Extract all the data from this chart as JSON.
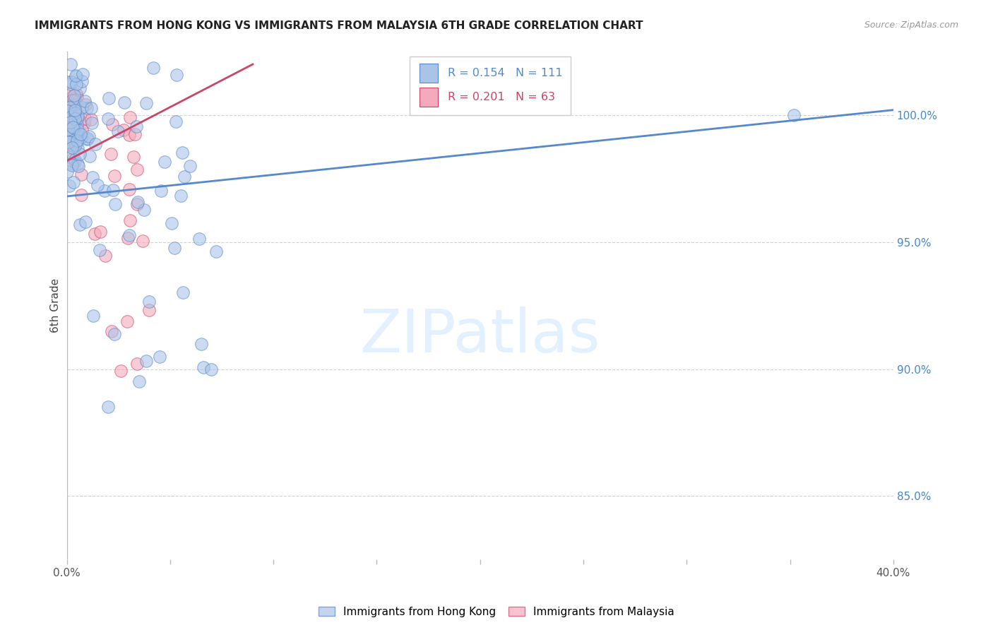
{
  "title": "IMMIGRANTS FROM HONG KONG VS IMMIGRANTS FROM MALAYSIA 6TH GRADE CORRELATION CHART",
  "source": "Source: ZipAtlas.com",
  "ylabel": "6th Grade",
  "yticks": [
    85.0,
    90.0,
    95.0,
    100.0
  ],
  "ytick_labels": [
    "85.0%",
    "90.0%",
    "95.0%",
    "100.0%"
  ],
  "xlim": [
    0.0,
    40.0
  ],
  "ylim": [
    82.5,
    102.5
  ],
  "hk_color": "#aac4e8",
  "hk_edge_color": "#5588cc",
  "my_color": "#f4aabc",
  "my_edge_color": "#cc4466",
  "hk_R": 0.154,
  "hk_N": 111,
  "my_R": 0.201,
  "my_N": 63,
  "hk_label": "Immigrants from Hong Kong",
  "my_label": "Immigrants from Malaysia",
  "hk_trend_x": [
    0.0,
    40.0
  ],
  "hk_trend_y": [
    96.8,
    100.2
  ],
  "my_trend_x": [
    0.0,
    9.0
  ],
  "my_trend_y": [
    98.2,
    102.0
  ],
  "watermark_text": "ZIPatlas",
  "watermark_color": "#ddeeff",
  "grid_color": "#cccccc",
  "ytick_color": "#4488cc",
  "xtick_color": "#555555",
  "bg_color": "#ffffff",
  "title_color": "#222222",
  "source_color": "#999999",
  "ylabel_color": "#444444",
  "legend_border_color": "#cccccc",
  "legend_bg_color": "#ffffff"
}
